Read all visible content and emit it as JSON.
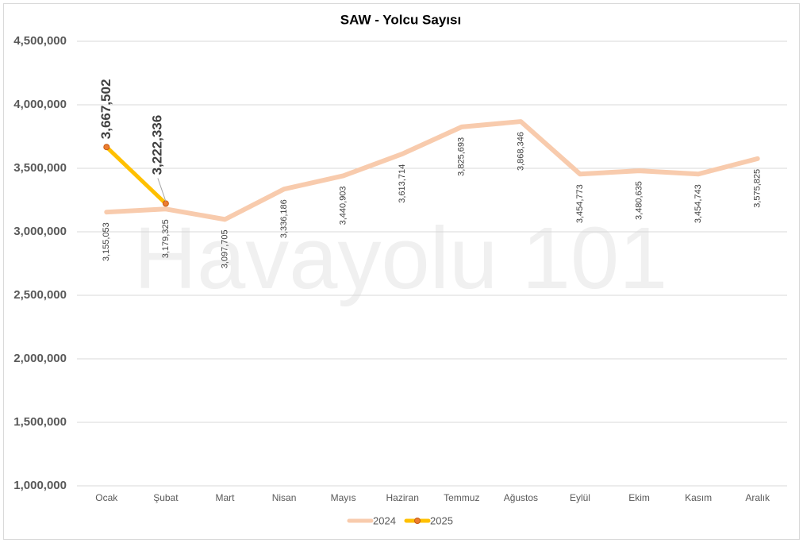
{
  "chart_data": {
    "type": "line",
    "title": "SAW - Yolcu Sayısı",
    "watermark": "Havayolu 101",
    "categories": [
      "Ocak",
      "Şubat",
      "Mart",
      "Nisan",
      "Mayıs",
      "Haziran",
      "Temmuz",
      "Ağustos",
      "Eylül",
      "Ekim",
      "Kasım",
      "Aralık"
    ],
    "series": [
      {
        "name": "2024",
        "color": "#f8cbad",
        "values": [
          3155053,
          3179325,
          3097705,
          3336186,
          3440903,
          3613714,
          3825693,
          3868346,
          3454773,
          3480635,
          3454743,
          3575825
        ],
        "value_labels": [
          "3,155,053",
          "3,179,325",
          "3,097,705",
          "3,336,186",
          "3,440,903",
          "3,613,714",
          "3,825,693",
          "3,868,346",
          "3,454,773",
          "3,480,635",
          "3,454,743",
          "3,575,825"
        ]
      },
      {
        "name": "2025",
        "color": "#ffc000",
        "marker_color": "#ed7d31",
        "values": [
          3667502,
          3222336,
          null,
          null,
          null,
          null,
          null,
          null,
          null,
          null,
          null,
          null
        ],
        "value_labels": [
          "3,667,502",
          "3,222,336",
          null,
          null,
          null,
          null,
          null,
          null,
          null,
          null,
          null,
          null
        ]
      }
    ],
    "ylim": [
      1000000,
      4500000
    ],
    "yticks": [
      {
        "value": 1000000,
        "label": "1,000,000"
      },
      {
        "value": 1500000,
        "label": "1,500,000"
      },
      {
        "value": 2000000,
        "label": "2,000,000"
      },
      {
        "value": 2500000,
        "label": "2,500,000"
      },
      {
        "value": 3000000,
        "label": "3,000,000"
      },
      {
        "value": 3500000,
        "label": "3,500,000"
      },
      {
        "value": 4000000,
        "label": "4,000,000"
      },
      {
        "value": 4500000,
        "label": "4,500,000"
      }
    ],
    "grid": true,
    "legend": "bottom"
  }
}
